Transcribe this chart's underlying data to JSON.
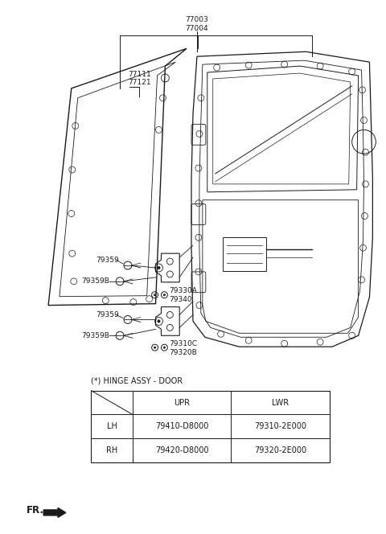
{
  "bg_color": "#ffffff",
  "fig_width": 4.8,
  "fig_height": 6.64,
  "dpi": 100,
  "line_color": "#1a1a1a",
  "text_color": "#1a1a1a",
  "font_size_small": 6.5,
  "font_size_table": 7.0,
  "font_size_fr": 8.5,
  "label_77003": "77003",
  "label_77004": "77004",
  "label_77111": "77111",
  "label_77121": "77121",
  "label_79359_u": "79359",
  "label_79359B_u": "79359B",
  "label_79330A": "79330A",
  "label_79340": "79340",
  "label_79359_l": "79359",
  "label_79359B_l": "79359B",
  "label_79310C": "79310C",
  "label_79320B": "79320B",
  "table_title": "(*) HINGE ASSY - DOOR",
  "table_col_headers": [
    "UPR",
    "LWR"
  ],
  "table_row_headers": [
    "LH",
    "RH"
  ],
  "table_data": [
    [
      "79410-D8000",
      "79310-2E000"
    ],
    [
      "79420-D8000",
      "79320-2E000"
    ]
  ],
  "fr_text": "FR."
}
